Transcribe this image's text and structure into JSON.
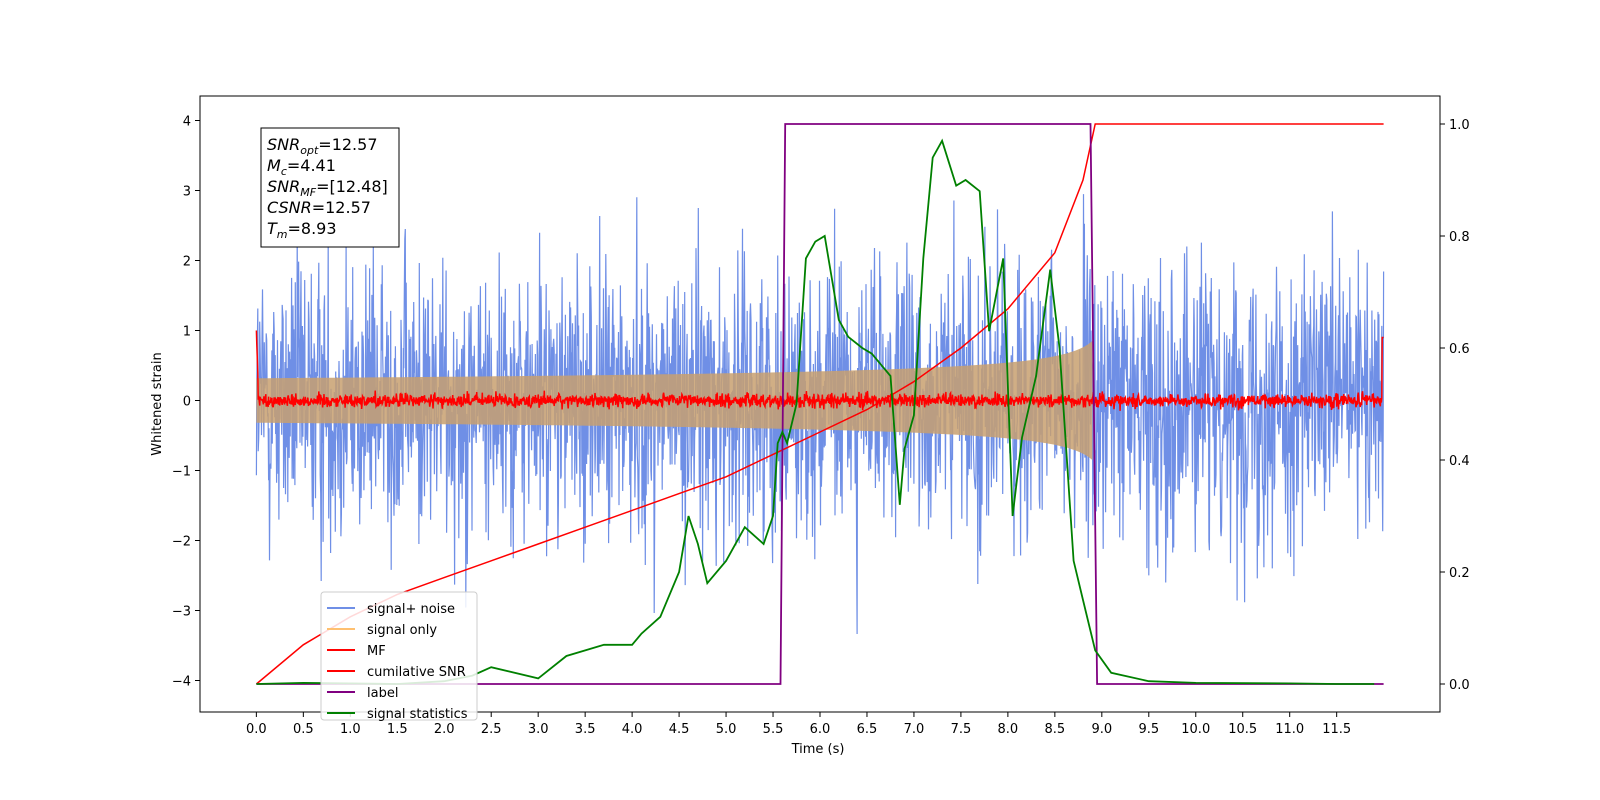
{
  "chart_data": {
    "type": "line",
    "xlabel": "Time (s)",
    "ylabel": "Whitened strain",
    "xlim": [
      -0.6,
      12.6
    ],
    "ylim": [
      -4.45,
      4.35
    ],
    "y2lim": [
      -0.05,
      1.05
    ],
    "x_ticks": [
      "0.0",
      "0.5",
      "1.0",
      "1.5",
      "2.0",
      "2.5",
      "3.0",
      "3.5",
      "4.0",
      "4.5",
      "5.0",
      "5.5",
      "6.0",
      "6.5",
      "7.0",
      "7.5",
      "8.0",
      "8.5",
      "9.0",
      "9.5",
      "10.0",
      "10.5",
      "11.0",
      "11.5"
    ],
    "y_ticks": [
      "4",
      "3",
      "2",
      "1",
      "0",
      "−1",
      "−2",
      "−3",
      "−4"
    ],
    "y2_ticks": [
      "1.0",
      "0.8",
      "0.6",
      "0.4",
      "0.2",
      "0.0"
    ],
    "legend_position": "lower left",
    "annotation": [
      {
        "var": "SNR",
        "sub": "opt",
        "value": "=12.57"
      },
      {
        "var": "M",
        "sub": "c",
        "value": "=4.41"
      },
      {
        "var": "SNR",
        "sub": "MF",
        "value": "=[12.48]"
      },
      {
        "var": "CSNR",
        "sub": "",
        "value": "=12.57"
      },
      {
        "var": "T",
        "sub": "m",
        "value": "=8.93"
      }
    ],
    "series": [
      {
        "name": "signal+ noise",
        "color": "#6f8fe6",
        "axis": "left",
        "kind": "noise",
        "x_range": [
          0.0,
          12.0
        ],
        "sigma": 1.0
      },
      {
        "name": "signal only",
        "color": "#c8a070",
        "axis": "left",
        "kind": "chirp-envelope",
        "x_range": [
          0.0,
          8.9
        ],
        "peak_amplitude": 0.85
      },
      {
        "name": "MF",
        "color": "#ff0000",
        "axis": "left",
        "kind": "noise",
        "x_range": [
          0.0,
          12.0
        ],
        "sigma": 0.05
      },
      {
        "name": "cumilative SNR",
        "color": "#ff0000",
        "axis": "right",
        "x": [
          0.0,
          0.5,
          1.0,
          1.5,
          2.0,
          2.5,
          3.0,
          3.5,
          4.0,
          4.5,
          5.0,
          5.5,
          6.0,
          6.5,
          7.0,
          7.5,
          8.0,
          8.5,
          8.8,
          8.93,
          12.0
        ],
        "values": [
          0.0,
          0.07,
          0.12,
          0.16,
          0.19,
          0.22,
          0.25,
          0.28,
          0.31,
          0.34,
          0.37,
          0.41,
          0.45,
          0.49,
          0.54,
          0.6,
          0.67,
          0.77,
          0.9,
          1.0,
          1.0
        ]
      },
      {
        "name": "label",
        "color": "#800080",
        "axis": "right",
        "x": [
          0.0,
          5.58,
          5.63,
          8.88,
          8.95,
          12.0
        ],
        "values": [
          0.0,
          0.0,
          1.0,
          1.0,
          0.0,
          0.0
        ]
      },
      {
        "name": "signal statistics",
        "color": "#008000",
        "axis": "right",
        "x": [
          0.0,
          0.5,
          1.0,
          1.5,
          2.0,
          2.3,
          2.5,
          3.0,
          3.3,
          3.5,
          3.7,
          4.0,
          4.1,
          4.3,
          4.5,
          4.6,
          4.7,
          4.8,
          5.0,
          5.2,
          5.4,
          5.5,
          5.55,
          5.6,
          5.65,
          5.75,
          5.85,
          5.95,
          6.05,
          6.2,
          6.3,
          6.45,
          6.55,
          6.75,
          6.85,
          6.9,
          7.0,
          7.1,
          7.2,
          7.3,
          7.45,
          7.55,
          7.7,
          7.8,
          7.95,
          8.05,
          8.15,
          8.3,
          8.45,
          8.55,
          8.7,
          8.8,
          8.93,
          9.1,
          9.5,
          10.0,
          11.0,
          11.5,
          11.9
        ],
        "values": [
          0.0,
          0.002,
          0.001,
          0.0,
          0.005,
          0.015,
          0.03,
          0.01,
          0.05,
          0.06,
          0.07,
          0.07,
          0.09,
          0.12,
          0.2,
          0.3,
          0.25,
          0.18,
          0.22,
          0.28,
          0.25,
          0.3,
          0.43,
          0.45,
          0.43,
          0.5,
          0.76,
          0.79,
          0.8,
          0.65,
          0.62,
          0.6,
          0.59,
          0.55,
          0.32,
          0.42,
          0.48,
          0.76,
          0.94,
          0.97,
          0.89,
          0.9,
          0.88,
          0.63,
          0.76,
          0.3,
          0.44,
          0.55,
          0.74,
          0.6,
          0.22,
          0.15,
          0.06,
          0.02,
          0.005,
          0.002,
          0.001,
          0.0,
          0.0
        ]
      }
    ]
  }
}
